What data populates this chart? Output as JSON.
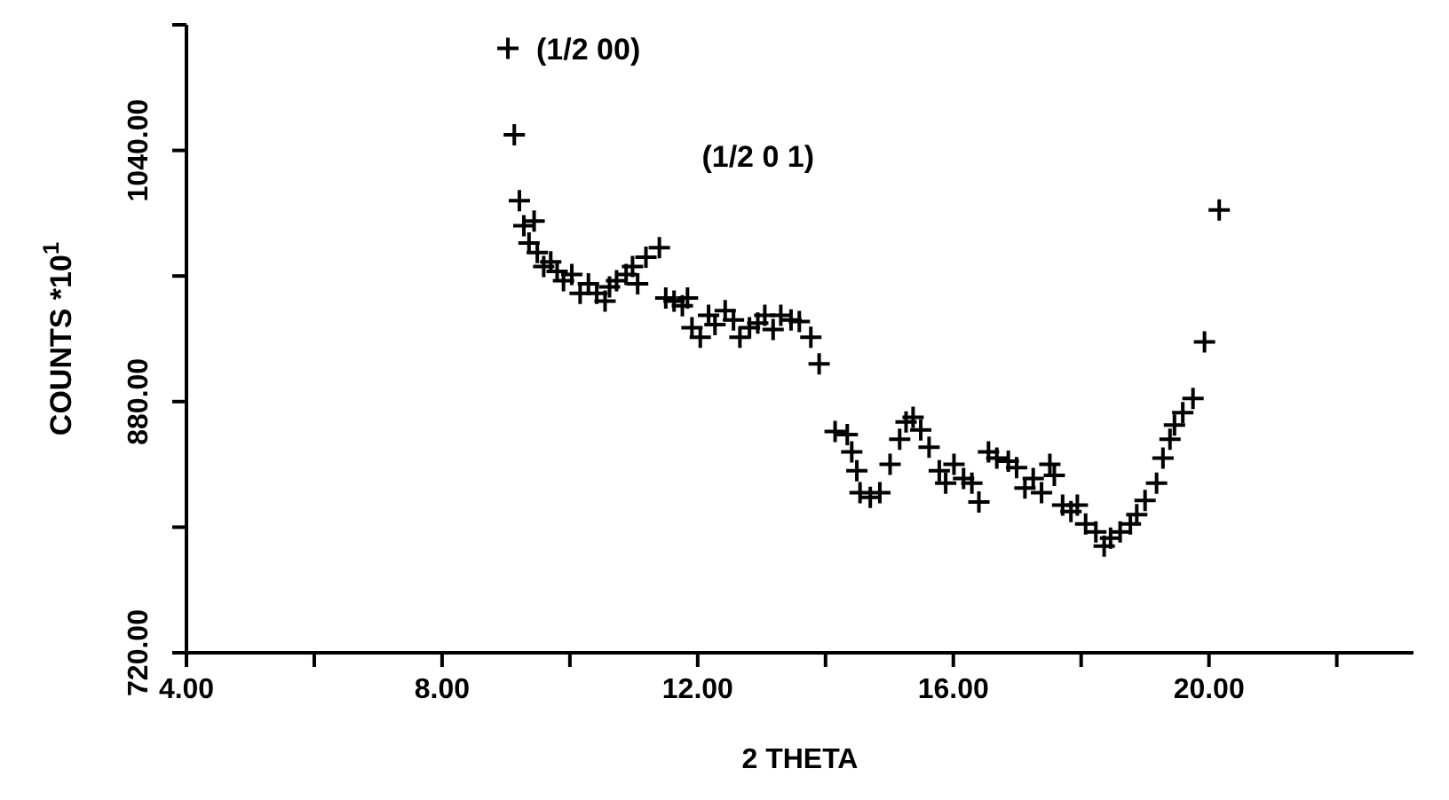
{
  "chart_data": {
    "type": "scatter",
    "xlabel": "2 THETA",
    "ylabel": "COUNTS *10$^{1}$",
    "xlim": [
      4,
      23.2
    ],
    "ylim": [
      720,
      1120
    ],
    "xticks": [
      {
        "value": 4,
        "label": "4.00"
      },
      {
        "value": 6,
        "label": null
      },
      {
        "value": 8,
        "label": "8.00"
      },
      {
        "value": 10,
        "label": null
      },
      {
        "value": 12,
        "label": "12.00"
      },
      {
        "value": 14,
        "label": null
      },
      {
        "value": 16,
        "label": "16.00"
      },
      {
        "value": 18,
        "label": null
      },
      {
        "value": 20,
        "label": "20.00"
      },
      {
        "value": 22,
        "label": null
      }
    ],
    "yticks": [
      {
        "value": 720,
        "label": "720.00"
      },
      {
        "value": 800,
        "label": null
      },
      {
        "value": 880,
        "label": "880.00"
      },
      {
        "value": 960,
        "label": null
      },
      {
        "value": 1040,
        "label": "1040.00"
      },
      {
        "value": 1120,
        "label": null
      }
    ],
    "grid": false,
    "marker": "cross",
    "color": "#000000",
    "x": [
      9.03,
      9.13,
      9.21,
      9.28,
      9.44,
      9.36,
      9.49,
      9.59,
      9.7,
      9.8,
      9.9,
      10.03,
      10.16,
      10.29,
      10.42,
      10.55,
      10.62,
      10.73,
      10.88,
      10.98,
      11.06,
      11.19,
      11.4,
      11.5,
      11.63,
      11.76,
      11.84,
      11.91,
      12.04,
      12.17,
      12.27,
      12.43,
      12.56,
      12.66,
      12.81,
      12.94,
      13.05,
      13.18,
      13.3,
      13.46,
      13.59,
      13.77,
      13.9,
      14.15,
      14.34,
      14.41,
      14.49,
      14.54,
      14.7,
      14.85,
      15.01,
      15.16,
      15.26,
      15.37,
      15.49,
      15.62,
      15.78,
      15.88,
      16.01,
      16.16,
      16.29,
      16.4,
      16.55,
      16.68,
      16.86,
      16.99,
      17.12,
      17.25,
      17.38,
      17.51,
      17.58,
      17.71,
      17.84,
      17.94,
      18.07,
      18.23,
      18.36,
      18.46,
      18.61,
      18.77,
      18.87,
      19.0,
      19.18,
      19.28,
      19.39,
      19.46,
      19.59,
      19.75,
      19.93,
      20.16
    ],
    "values": [
      1105,
      1050,
      1008,
      992,
      995,
      981,
      975,
      966,
      969,
      963,
      957,
      961,
      949,
      955,
      949,
      944,
      953,
      957,
      961,
      966,
      955,
      972,
      978,
      946,
      944,
      941,
      946,
      927,
      921,
      935,
      929,
      938,
      932,
      921,
      927,
      930,
      935,
      926,
      935,
      932,
      931,
      921,
      904,
      861,
      859,
      848,
      836,
      822,
      819,
      822,
      840,
      856,
      867,
      870,
      862,
      851,
      836,
      828,
      840,
      831,
      828,
      816,
      848,
      844,
      842,
      838,
      825,
      831,
      822,
      840,
      833,
      814,
      810,
      814,
      802,
      797,
      788,
      793,
      797,
      802,
      808,
      817,
      828,
      844,
      856,
      865,
      873,
      882,
      918,
      1002
    ],
    "annotations": [
      {
        "text": "(1/2 00)",
        "x": 9.03,
        "y": 1105
      },
      "(1/2 0 1)"
    ]
  }
}
